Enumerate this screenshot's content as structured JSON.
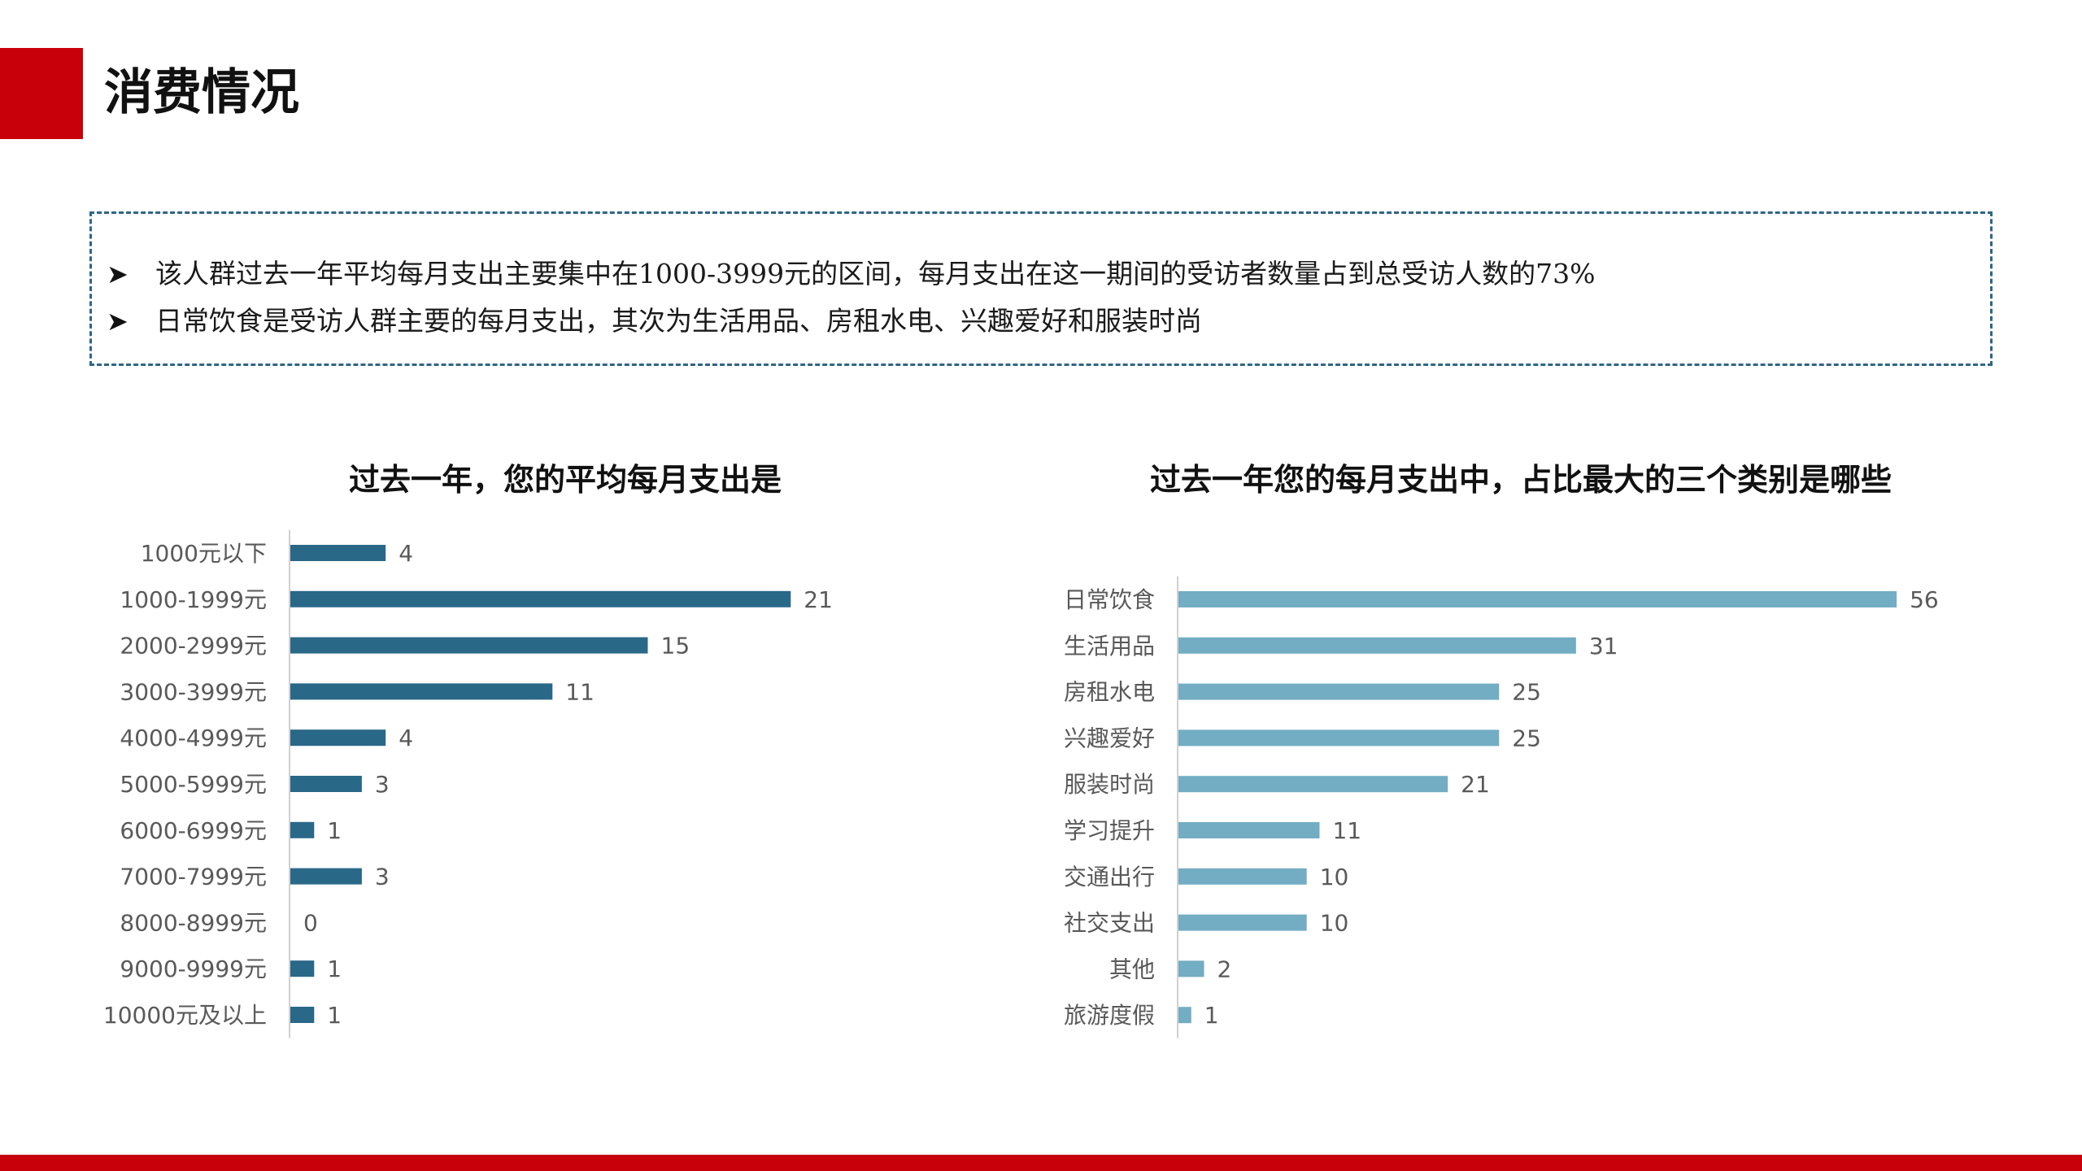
{
  "header": {
    "title": "消费情况",
    "accent_color": "#c8000a"
  },
  "summary": {
    "bullet_icon": "arrowhead-icon",
    "bullets": [
      "该人群过去一年平均每月支出主要集中在1000-3999元的区间，每月支出在这一期间的受访者数量占到总受访人数的73%",
      "日常饮食是受访人群主要的每月支出，其次为生活用品、房租水电、兴趣爱好和服装时尚"
    ],
    "border_color": "#2f6687"
  },
  "chart_data": [
    {
      "type": "bar",
      "orientation": "horizontal",
      "title": "过去一年，您的平均每月支出是",
      "categories": [
        "1000元以下",
        "1000-1999元",
        "2000-2999元",
        "3000-3999元",
        "4000-4999元",
        "5000-5999元",
        "6000-6999元",
        "7000-7999元",
        "8000-8999元",
        "9000-9999元",
        "10000元及以上"
      ],
      "values": [
        4,
        21,
        15,
        11,
        4,
        3,
        1,
        3,
        0,
        1,
        1
      ],
      "bar_color": "#2a6888",
      "xlabel": "",
      "ylabel": "",
      "data_labels": true,
      "grid": false,
      "legend": "none"
    },
    {
      "type": "bar",
      "orientation": "horizontal",
      "title": "过去一年您的每月支出中，占比最大的三个类别是哪些",
      "categories": [
        "日常饮食",
        "生活用品",
        "房租水电",
        "兴趣爱好",
        "服装时尚",
        "学习提升",
        "交通出行",
        "社交支出",
        "其他",
        "旅游度假"
      ],
      "values": [
        56,
        31,
        25,
        25,
        21,
        11,
        10,
        10,
        2,
        1
      ],
      "bar_color": "#72adc4",
      "xlabel": "",
      "ylabel": "",
      "data_labels": true,
      "grid": false,
      "legend": "none"
    }
  ],
  "footer": {
    "bar_color": "#c8000a"
  }
}
